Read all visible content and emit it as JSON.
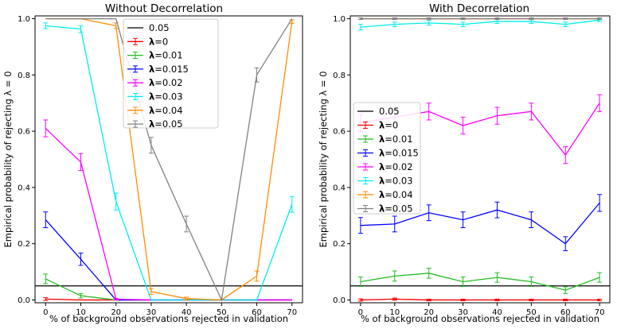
{
  "chart_data": [
    {
      "type": "line",
      "title": "Without Decorrelation",
      "xlabel": "% of background observations rejected in validation",
      "ylabel": "Empirical probability of rejecting λ = 0",
      "x": [
        0,
        10,
        20,
        30,
        40,
        50,
        60,
        70
      ],
      "xticks": [
        "0",
        "10",
        "20",
        "30",
        "40",
        "50",
        "60",
        "70"
      ],
      "xlim": [
        -3,
        73
      ],
      "ylim": [
        -0.01,
        1.01
      ],
      "yticks": [
        "0.0",
        "0.2",
        "0.4",
        "0.6",
        "0.8",
        "1.0"
      ],
      "legend_position": "top-center",
      "reference_line": {
        "name": "0.05",
        "value": 0.05,
        "color": "#000000"
      },
      "series": [
        {
          "name": "λ=0",
          "color": "#ff0000",
          "values": [
            0.003,
            0.0,
            0.0,
            0.0,
            0.0,
            0.0,
            0.0,
            0.0
          ],
          "err": [
            0.005,
            0.0,
            0.0,
            0.0,
            0.0,
            0.0,
            0.0,
            0.0
          ]
        },
        {
          "name": "λ=0.01",
          "color": "#22bb22",
          "values": [
            0.075,
            0.015,
            0.0,
            0.0,
            0.0,
            0.0,
            0.0,
            0.0
          ],
          "err": [
            0.017,
            0.008,
            0.0,
            0.0,
            0.0,
            0.0,
            0.0,
            0.0
          ]
        },
        {
          "name": "λ=0.015",
          "color": "#0000ff",
          "values": [
            0.285,
            0.145,
            0.0,
            0.0,
            0.0,
            0.0,
            0.0,
            0.0
          ],
          "err": [
            0.028,
            0.022,
            0.0,
            0.0,
            0.0,
            0.0,
            0.0,
            0.0
          ]
        },
        {
          "name": "λ=0.02",
          "color": "#ff00ff",
          "values": [
            0.61,
            0.49,
            0.003,
            0.0,
            0.0,
            0.0,
            0.0,
            0.0
          ],
          "err": [
            0.03,
            0.03,
            0.003,
            0.0,
            0.0,
            0.0,
            0.0,
            0.0
          ]
        },
        {
          "name": "λ=0.03",
          "color": "#00eeee",
          "values": [
            0.975,
            0.963,
            0.35,
            0.0,
            0.0,
            0.0,
            0.0,
            0.34
          ],
          "err": [
            0.01,
            0.012,
            0.03,
            0.0,
            0.0,
            0.0,
            0.0,
            0.028
          ]
        },
        {
          "name": "λ=0.04",
          "color": "#ff8c00",
          "values": [
            1.0,
            1.0,
            0.975,
            0.03,
            0.005,
            0.0,
            0.085,
            0.99
          ],
          "err": [
            0.0,
            0.0,
            0.01,
            0.01,
            0.005,
            0.0,
            0.018,
            0.006
          ]
        },
        {
          "name": "λ=0.05",
          "color": "#808080",
          "values": [
            1.0,
            1.0,
            1.0,
            0.55,
            0.27,
            0.0,
            0.8,
            1.0
          ],
          "err": [
            0.0,
            0.0,
            0.0,
            0.028,
            0.028,
            0.0,
            0.025,
            0.0
          ]
        }
      ]
    },
    {
      "type": "line",
      "title": "With Decorrelation",
      "xlabel": "% of background observations rejected in validation",
      "ylabel": "Empirical probability of rejecting λ = 0",
      "x": [
        0,
        10,
        20,
        30,
        40,
        50,
        60,
        70
      ],
      "xticks": [
        "0",
        "10",
        "20",
        "30",
        "40",
        "50",
        "60",
        "70"
      ],
      "xlim": [
        -3,
        73
      ],
      "ylim": [
        -0.01,
        1.01
      ],
      "yticks": [
        "0.0",
        "0.2",
        "0.4",
        "0.6",
        "0.8",
        "1.0"
      ],
      "legend_position": "center-left",
      "reference_line": {
        "name": "0.05",
        "value": 0.05,
        "color": "#000000"
      },
      "series": [
        {
          "name": "λ=0",
          "color": "#ff0000",
          "values": [
            0.0,
            0.003,
            0.0,
            0.0,
            0.0,
            0.0,
            0.0,
            0.0
          ],
          "err": [
            0.004,
            0.004,
            0.003,
            0.003,
            0.003,
            0.003,
            0.003,
            0.003
          ]
        },
        {
          "name": "λ=0.01",
          "color": "#22bb22",
          "values": [
            0.065,
            0.085,
            0.095,
            0.065,
            0.08,
            0.065,
            0.035,
            0.08
          ],
          "err": [
            0.017,
            0.018,
            0.018,
            0.017,
            0.017,
            0.017,
            0.012,
            0.017
          ]
        },
        {
          "name": "λ=0.015",
          "color": "#0000ff",
          "values": [
            0.265,
            0.27,
            0.31,
            0.285,
            0.32,
            0.285,
            0.2,
            0.345
          ],
          "err": [
            0.028,
            0.028,
            0.028,
            0.028,
            0.028,
            0.028,
            0.025,
            0.03
          ]
        },
        {
          "name": "λ=0.02",
          "color": "#ff00ff",
          "values": [
            0.63,
            0.65,
            0.67,
            0.62,
            0.655,
            0.67,
            0.515,
            0.7
          ],
          "err": [
            0.03,
            0.03,
            0.03,
            0.03,
            0.03,
            0.03,
            0.03,
            0.03
          ]
        },
        {
          "name": "λ=0.03",
          "color": "#00eeee",
          "values": [
            0.97,
            0.98,
            0.985,
            0.98,
            0.99,
            0.99,
            0.98,
            0.995
          ],
          "err": [
            0.01,
            0.008,
            0.008,
            0.008,
            0.007,
            0.007,
            0.008,
            0.005
          ]
        },
        {
          "name": "λ=0.04",
          "color": "#ff8c00",
          "values": [
            1.0,
            1.0,
            1.0,
            1.0,
            1.0,
            1.0,
            1.0,
            1.0
          ],
          "err": [
            0.0,
            0.0,
            0.0,
            0.0,
            0.0,
            0.0,
            0.0,
            0.0
          ]
        },
        {
          "name": "λ=0.05",
          "color": "#808080",
          "values": [
            1.0,
            1.0,
            1.0,
            1.0,
            1.0,
            1.0,
            1.0,
            1.0
          ],
          "err": [
            0.003,
            0.003,
            0.003,
            0.003,
            0.003,
            0.003,
            0.003,
            0.003
          ]
        }
      ]
    }
  ]
}
